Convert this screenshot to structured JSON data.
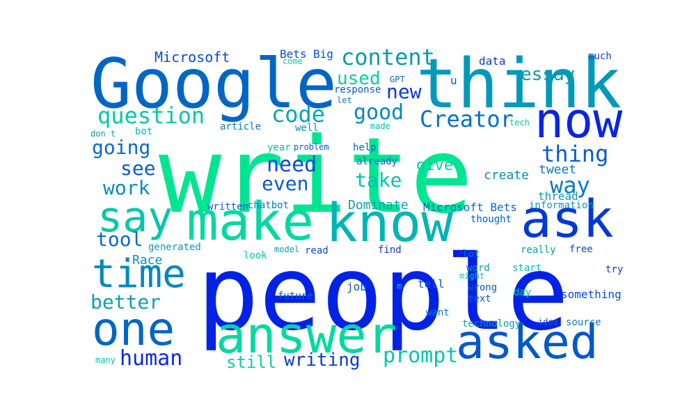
{
  "words": [
    {
      "text": "write",
      "color": "#00e592",
      "vertical": false
    },
    {
      "text": "people",
      "color": "#0022e6",
      "vertical": false
    },
    {
      "text": "think",
      "color": "#0099bb",
      "vertical": false
    },
    {
      "text": "Google",
      "color": "#0066c4",
      "vertical": false
    },
    {
      "text": "make",
      "color": "#00d9a0",
      "vertical": false
    },
    {
      "text": "know",
      "color": "#00b5b5",
      "vertical": false
    },
    {
      "text": "answer",
      "color": "#00d9a0",
      "vertical": false
    },
    {
      "text": "asked",
      "color": "#0058cc",
      "vertical": false
    },
    {
      "text": "one",
      "color": "#0066c4",
      "vertical": false
    },
    {
      "text": "ask",
      "color": "#0038d8",
      "vertical": false
    },
    {
      "text": "now",
      "color": "#0a24e4",
      "vertical": false
    },
    {
      "text": "time",
      "color": "#0088c0",
      "vertical": false
    },
    {
      "text": "say",
      "color": "#00c8a8",
      "vertical": false
    },
    {
      "text": "Creator",
      "color": "#0070c8",
      "vertical": false
    },
    {
      "text": "content",
      "color": "#0a9aa8",
      "vertical": false
    },
    {
      "text": "question",
      "color": "#00c8a8",
      "vertical": false
    },
    {
      "text": "code",
      "color": "#00a6b0",
      "vertical": false
    },
    {
      "text": "good",
      "color": "#0088bf",
      "vertical": false
    },
    {
      "text": "new",
      "color": "#0a3ad8",
      "vertical": false
    },
    {
      "text": "thing",
      "color": "#0a5ad0",
      "vertical": false
    },
    {
      "text": "need",
      "color": "#0a4ad6",
      "vertical": false
    },
    {
      "text": "way",
      "color": "#0a7ac4",
      "vertical": false
    },
    {
      "text": "human",
      "color": "#0a2ae2",
      "vertical": false
    },
    {
      "text": "prompt",
      "color": "#00c8a8",
      "vertical": false
    },
    {
      "text": "essay",
      "color": "#0a9ab0",
      "vertical": false
    },
    {
      "text": "going",
      "color": "#0a6ac8",
      "vertical": false
    },
    {
      "text": "see",
      "color": "#0a5ad0",
      "vertical": false
    },
    {
      "text": "work",
      "color": "#0a8aba",
      "vertical": false
    },
    {
      "text": "even",
      "color": "#0a5ad0",
      "vertical": false
    },
    {
      "text": "take",
      "color": "#00c2ac",
      "vertical": false
    },
    {
      "text": "better",
      "color": "#0aa0b4",
      "vertical": false
    },
    {
      "text": "tool",
      "color": "#0a6ac8",
      "vertical": false
    },
    {
      "text": "writing",
      "color": "#0a3ad8",
      "vertical": false
    },
    {
      "text": "still",
      "color": "#00d2a2",
      "vertical": false
    },
    {
      "text": "used",
      "color": "#00d2a2",
      "vertical": false
    },
    {
      "text": "give",
      "color": "#00d2a2",
      "vertical": false
    },
    {
      "text": "Microsoft",
      "color": "#0a4ad6",
      "vertical": false
    },
    {
      "text": "Bets",
      "color": "#0a4ad6",
      "vertical": false
    },
    {
      "text": "Big",
      "color": "#0a4ad6",
      "vertical": false
    },
    {
      "text": "Dominate",
      "color": "#0aa0b4",
      "vertical": false
    },
    {
      "text": "Race",
      "color": "#0a90bc",
      "vertical": false
    },
    {
      "text": "Microsoft Bets",
      "color": "#0a6ac8",
      "vertical": false
    },
    {
      "text": "create",
      "color": "#0a8aba",
      "vertical": false
    },
    {
      "text": "tweet",
      "color": "#0a7ac4",
      "vertical": false
    },
    {
      "text": "thread",
      "color": "#0a9ab0",
      "vertical": false
    },
    {
      "text": "data",
      "color": "#0a3ad8",
      "vertical": false
    },
    {
      "text": "much",
      "color": "#0a3ad8",
      "vertical": false
    },
    {
      "text": "come",
      "color": "#0ac8b0",
      "vertical": false
    },
    {
      "text": "GPT",
      "color": "#0a6ac8",
      "vertical": false
    },
    {
      "text": "response",
      "color": "#0a5ad0",
      "vertical": false
    },
    {
      "text": "let",
      "color": "#0a7ac4",
      "vertical": false
    },
    {
      "text": "u",
      "color": "#0a5ad0",
      "vertical": false
    },
    {
      "text": "tech",
      "color": "#00c8a8",
      "vertical": false
    },
    {
      "text": "article",
      "color": "#0a7ac4",
      "vertical": false
    },
    {
      "text": "well",
      "color": "#0a8aba",
      "vertical": false
    },
    {
      "text": "made",
      "color": "#00c2ac",
      "vertical": false
    },
    {
      "text": "don t",
      "color": "#0a9ab0",
      "vertical": false
    },
    {
      "text": "bot",
      "color": "#00c2ac",
      "vertical": false
    },
    {
      "text": "year",
      "color": "#00c2ac",
      "vertical": false
    },
    {
      "text": "problem",
      "color": "#0a5ad0",
      "vertical": false
    },
    {
      "text": "help",
      "color": "#0a5ad0",
      "vertical": false
    },
    {
      "text": "already",
      "color": "#0a6ac8",
      "vertical": false
    },
    {
      "text": "written",
      "color": "#0a5ad0",
      "vertical": false
    },
    {
      "text": "chatbot",
      "color": "#0a7ac4",
      "vertical": false
    },
    {
      "text": "information",
      "color": "#0a9ab0",
      "vertical": false
    },
    {
      "text": "thought",
      "color": "#0a5ad0",
      "vertical": false
    },
    {
      "text": "generated",
      "color": "#0a9ab0",
      "vertical": false
    },
    {
      "text": "look",
      "color": "#00c8a8",
      "vertical": false
    },
    {
      "text": "model",
      "color": "#0a9ab0",
      "vertical": false
    },
    {
      "text": "read",
      "color": "#0a4ad6",
      "vertical": false
    },
    {
      "text": "find",
      "color": "#0a3ad8",
      "vertical": false
    },
    {
      "text": "really",
      "color": "#0a9ab0",
      "vertical": false
    },
    {
      "text": "free",
      "color": "#0a4ad6",
      "vertical": false
    },
    {
      "text": "lot",
      "color": "#0a6ac8",
      "vertical": false
    },
    {
      "text": "word",
      "color": "#0a9ab0",
      "vertical": false
    },
    {
      "text": "start",
      "color": "#00c2ac",
      "vertical": false
    },
    {
      "text": "try",
      "color": "#0a3ad8",
      "vertical": false
    },
    {
      "text": "might",
      "color": "#00c8a8",
      "vertical": false
    },
    {
      "text": "tell",
      "color": "#0a5ad0",
      "vertical": false
    },
    {
      "text": "m",
      "color": "#00c8a8",
      "vertical": false
    },
    {
      "text": "wrong",
      "color": "#0a5ad0",
      "vertical": false
    },
    {
      "text": "job",
      "color": "#0a5ad0",
      "vertical": false
    },
    {
      "text": "day",
      "color": "#00c2ac",
      "vertical": false
    },
    {
      "text": "something",
      "color": "#0a4ad6",
      "vertical": false
    },
    {
      "text": "future",
      "color": "#0a5ad0",
      "vertical": false
    },
    {
      "text": "text",
      "color": "#0a5ad0",
      "vertical": false
    },
    {
      "text": "want",
      "color": "#0a7ac4",
      "vertical": false
    },
    {
      "text": "technology",
      "color": "#0a9ab0",
      "vertical": false
    },
    {
      "text": "idea",
      "color": "#0a5ad0",
      "vertical": false
    },
    {
      "text": "source",
      "color": "#0a7ac4",
      "vertical": false
    },
    {
      "text": "many",
      "color": "#00c8a8",
      "vertical": false
    }
  ]
}
